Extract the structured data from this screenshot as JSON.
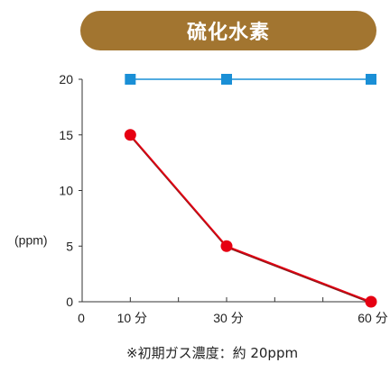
{
  "title": "硫化水素",
  "footnote": "※初期ガス濃度：約 20ppm",
  "colors": {
    "title_bg": "#a27530",
    "title_text": "#ffffff",
    "blue_series": "#1a8fd6",
    "red_series": "#e60012",
    "red_line_shadow": "#8a1a1a",
    "axis": "#333333"
  },
  "chart_data": {
    "type": "line",
    "ylabel": "(ppm)",
    "xlabel": "",
    "x_origin_label": "0",
    "x": [
      10,
      30,
      60
    ],
    "x_tick_labels": [
      "10 分",
      "30 分",
      "60 分"
    ],
    "xlim": [
      0,
      60
    ],
    "ylim": [
      0,
      20
    ],
    "yticks": [
      0,
      5,
      10,
      15,
      20
    ],
    "grid": false,
    "series": [
      {
        "values": [
          20,
          20,
          20
        ],
        "marker": "square",
        "color": "#1a8fd6"
      },
      {
        "values": [
          15,
          5,
          0
        ],
        "marker": "circle",
        "color": "#e60012"
      }
    ]
  }
}
